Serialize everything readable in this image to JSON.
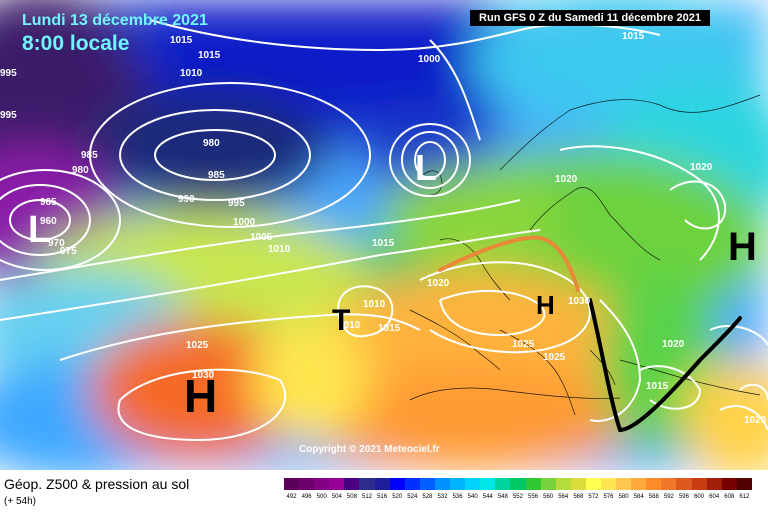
{
  "header": {
    "date": "Lundi 13 décembre 2021",
    "time": "8:00 locale",
    "run": "Run GFS 0 Z du Samedi 11 décembre 2021"
  },
  "footer": {
    "title": "Géop. Z500 & pression au sol",
    "lead": "(+ 54h)",
    "copyright": "Copyright © 2021 Meteociel.fr"
  },
  "legend": {
    "values": [
      "492",
      "496",
      "500",
      "504",
      "508",
      "512",
      "516",
      "520",
      "524",
      "528",
      "532",
      "536",
      "540",
      "544",
      "548",
      "552",
      "556",
      "560",
      "564",
      "568",
      "572",
      "576",
      "580",
      "584",
      "588",
      "592",
      "596",
      "600",
      "604",
      "608",
      "612"
    ],
    "colors": [
      "#5a005a",
      "#6e006e",
      "#820082",
      "#960096",
      "#4b0082",
      "#2d2d8c",
      "#1e1e9c",
      "#0000ff",
      "#0030ff",
      "#0060ff",
      "#0090ff",
      "#00b4ff",
      "#00d2ff",
      "#00e6e6",
      "#00d2a0",
      "#00c864",
      "#32c832",
      "#78d23c",
      "#b4dc3c",
      "#dcdc3c",
      "#ffff50",
      "#ffe650",
      "#ffc850",
      "#ffaa3c",
      "#ff8c28",
      "#f07828",
      "#dc5a1e",
      "#c83c14",
      "#a01e0a",
      "#780000",
      "#500000"
    ]
  },
  "isobars": [
    "1015",
    "1015",
    "1010",
    "995",
    "995",
    "1000",
    "1015",
    "980",
    "985",
    "985",
    "980",
    "990",
    "995",
    "1000",
    "1005",
    "1010",
    "1020",
    "1015",
    "965",
    "960",
    "970",
    "975",
    "1020",
    "1020",
    "1010",
    "1010",
    "1015",
    "1025",
    "1030",
    "1025",
    "1025",
    "1030",
    "1020",
    "1015",
    "1020"
  ],
  "pressure_centers": [
    "H",
    "H",
    "H",
    "T",
    "L",
    "L"
  ]
}
